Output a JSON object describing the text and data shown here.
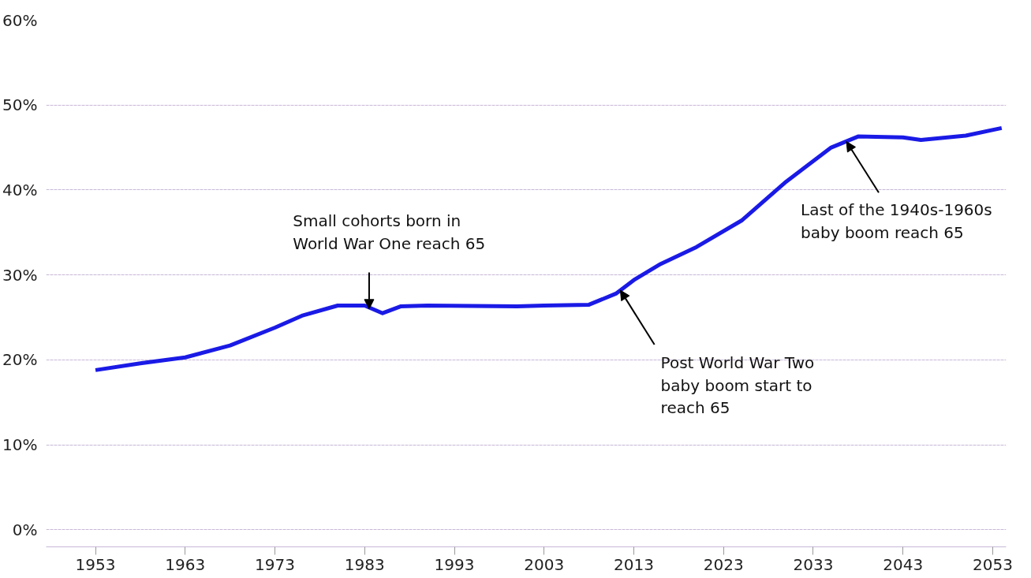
{
  "chart_data": {
    "type": "line",
    "x": [
      1953,
      1958,
      1963,
      1968,
      1973,
      1976,
      1980,
      1983,
      1985,
      1987,
      1990,
      2000,
      2003,
      2008,
      2011,
      2013,
      2016,
      2020,
      2025,
      2030,
      2035,
      2038,
      2043,
      2045,
      2050,
      2054
    ],
    "series": [
      {
        "color": "#1a1ae6",
        "values": [
          18.8,
          19.6,
          20.3,
          21.7,
          23.8,
          25.2,
          26.4,
          26.4,
          25.5,
          26.3,
          26.4,
          26.3,
          26.4,
          26.5,
          27.8,
          29.4,
          31.3,
          33.3,
          36.4,
          41.0,
          45.0,
          46.3,
          46.2,
          45.9,
          46.4,
          47.3
        ]
      }
    ],
    "xlim": [
      1947.5,
      2054.5
    ],
    "ylim": [
      -2,
      60
    ],
    "xticks": [
      1953,
      1963,
      1973,
      1983,
      1993,
      2003,
      2013,
      2023,
      2033,
      2043,
      2053
    ],
    "yticks": [
      {
        "value": 0,
        "label": "0%"
      },
      {
        "value": 10,
        "label": "10%"
      },
      {
        "value": 20,
        "label": "20%"
      },
      {
        "value": 30,
        "label": "30%"
      },
      {
        "value": 40,
        "label": "40%"
      },
      {
        "value": 50,
        "label": "50%"
      },
      {
        "value": 60,
        "label": "60%"
      }
    ],
    "grid": "y",
    "marker": "none",
    "line_style": "solid",
    "annotations": [
      {
        "text": "Small cohorts born in\nWorld War One reach 65",
        "x": 1983.5,
        "y": 26
      },
      {
        "text": "Post World War Two\nbaby boom start to\nreach 65",
        "x": 2011.5,
        "y": 28.2
      },
      {
        "text": "Last of the 1940s-1960s\nbaby boom reach 65",
        "x": 2036.7,
        "y": 45.7
      }
    ]
  }
}
